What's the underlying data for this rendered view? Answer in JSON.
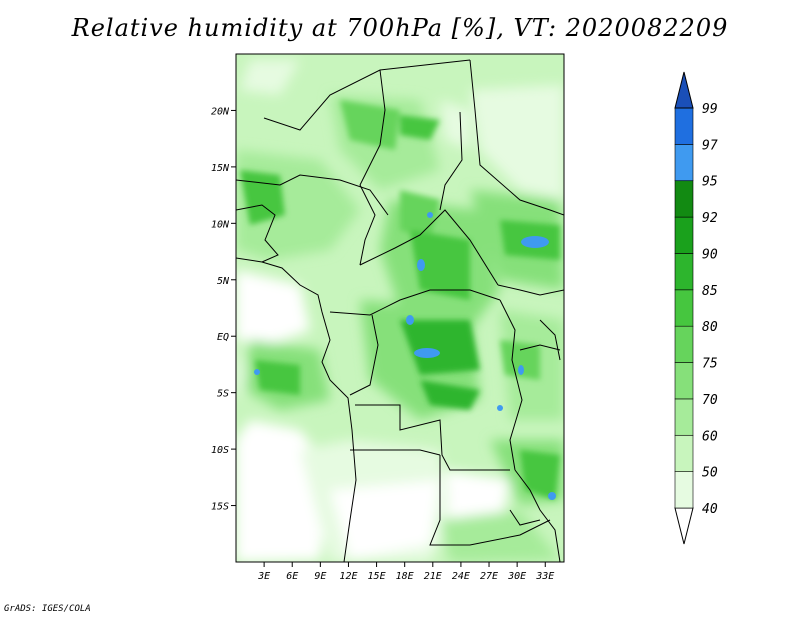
{
  "title": "Relative humidity at 700hPa [%], VT: 2020082209",
  "credit": "GrADS: IGES/COLA",
  "map": {
    "lon_range": [
      0,
      35
    ],
    "lat_range": [
      -20,
      25
    ],
    "lat_ticks": [
      {
        "value": 20,
        "label": "20N"
      },
      {
        "value": 15,
        "label": "15N"
      },
      {
        "value": 10,
        "label": "10N"
      },
      {
        "value": 5,
        "label": "5N"
      },
      {
        "value": 0,
        "label": "EQ"
      },
      {
        "value": -5,
        "label": "5S"
      },
      {
        "value": -10,
        "label": "10S"
      },
      {
        "value": -15,
        "label": "15S"
      }
    ],
    "lon_ticks": [
      {
        "value": 3,
        "label": "3E"
      },
      {
        "value": 6,
        "label": "6E"
      },
      {
        "value": 9,
        "label": "9E"
      },
      {
        "value": 12,
        "label": "12E"
      },
      {
        "value": 15,
        "label": "15E"
      },
      {
        "value": 18,
        "label": "18E"
      },
      {
        "value": 21,
        "label": "21E"
      },
      {
        "value": 24,
        "label": "24E"
      },
      {
        "value": 27,
        "label": "27E"
      },
      {
        "value": 30,
        "label": "30E"
      },
      {
        "value": 33,
        "label": "33E"
      }
    ]
  },
  "colorbar": {
    "levels": [
      "40",
      "50",
      "60",
      "70",
      "75",
      "80",
      "85",
      "90",
      "92",
      "95",
      "97",
      "99"
    ],
    "colors": [
      "#ffffff",
      "#e6fbe1",
      "#c8f5bd",
      "#a6eb9a",
      "#86e07a",
      "#66d45c",
      "#46c63f",
      "#2db52d",
      "#1aa11c",
      "#128a12",
      "#3f9af0",
      "#1f6fe0",
      "#1a4fb8"
    ]
  }
}
